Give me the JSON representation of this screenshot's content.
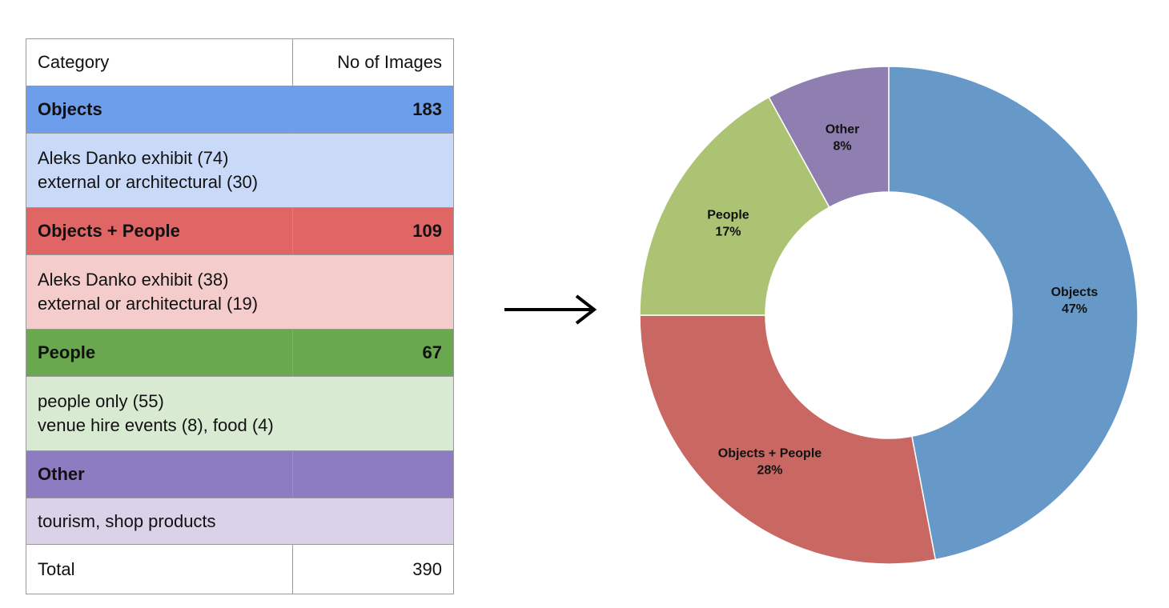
{
  "table": {
    "header": {
      "category": "Category",
      "count": "No of Images"
    },
    "groups": [
      {
        "name": "Objects",
        "count": "183",
        "details": [
          "Aleks Danko exhibit (74)",
          "external or architectural (30)"
        ],
        "header_color": "#6d9eeb",
        "detail_color": "#c9daf8"
      },
      {
        "name": "Objects + People",
        "count": "109",
        "details": [
          "Aleks Danko exhibit (38)",
          "external or architectural (19)"
        ],
        "header_color": "#e06666",
        "detail_color": "#f4cccc"
      },
      {
        "name": "People",
        "count": "67",
        "details": [
          "people only (55)",
          "venue hire events (8), food (4)"
        ],
        "header_color": "#6aa84f",
        "detail_color": "#d9ead3"
      },
      {
        "name": "Other",
        "count": "",
        "details": [
          "tourism, shop products"
        ],
        "header_color": "#8e7cc3",
        "detail_color": "#d9d2e9"
      }
    ],
    "total_label": "Total",
    "total_value": "390"
  },
  "chart_data": {
    "type": "pie",
    "donut": true,
    "categories": [
      "Objects",
      "Objects + People",
      "People",
      "Other"
    ],
    "values": [
      47,
      28,
      17,
      8
    ],
    "labels": [
      "47%",
      "28%",
      "17%",
      "8%"
    ],
    "colors": [
      "#6699c8",
      "#c96762",
      "#adc374",
      "#8f7fb0"
    ],
    "start": "12 o'clock",
    "direction": "clockwise"
  }
}
